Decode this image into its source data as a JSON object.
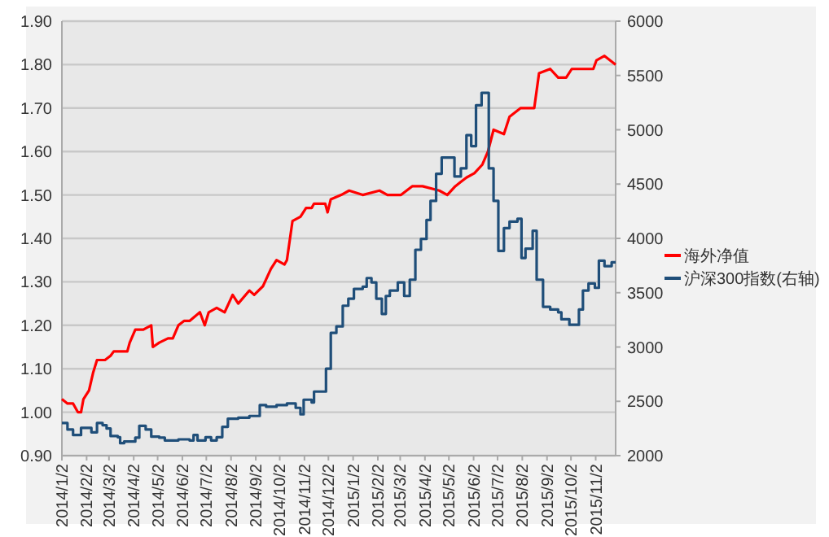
{
  "chart_data": {
    "type": "line",
    "xlim": [
      "2014-01-02",
      "2015-11-27"
    ],
    "xticks": [
      {
        "value": "2014-01-02",
        "label": "2014/1/2"
      },
      {
        "value": "2014-02-02",
        "label": "2014/2/2"
      },
      {
        "value": "2014-03-02",
        "label": "2014/3/2"
      },
      {
        "value": "2014-04-02",
        "label": "2014/4/2"
      },
      {
        "value": "2014-05-02",
        "label": "2014/5/2"
      },
      {
        "value": "2014-06-02",
        "label": "2014/6/2"
      },
      {
        "value": "2014-07-02",
        "label": "2014/7/2"
      },
      {
        "value": "2014-08-02",
        "label": "2014/8/2"
      },
      {
        "value": "2014-09-02",
        "label": "2014/9/2"
      },
      {
        "value": "2014-10-02",
        "label": "2014/10/2"
      },
      {
        "value": "2014-11-02",
        "label": "2014/11/2"
      },
      {
        "value": "2014-12-02",
        "label": "2014/12/2"
      },
      {
        "value": "2015-01-02",
        "label": "2015/1/2"
      },
      {
        "value": "2015-02-02",
        "label": "2015/2/2"
      },
      {
        "value": "2015-03-02",
        "label": "2015/3/2"
      },
      {
        "value": "2015-04-02",
        "label": "2015/4/2"
      },
      {
        "value": "2015-05-02",
        "label": "2015/5/2"
      },
      {
        "value": "2015-06-02",
        "label": "2015/6/2"
      },
      {
        "value": "2015-07-02",
        "label": "2015/7/2"
      },
      {
        "value": "2015-08-02",
        "label": "2015/8/2"
      },
      {
        "value": "2015-09-02",
        "label": "2015/9/2"
      },
      {
        "value": "2015-10-02",
        "label": "2015/10/2"
      },
      {
        "value": "2015-11-02",
        "label": "2015/11/2"
      }
    ],
    "ylim": [
      0.9,
      1.9
    ],
    "yticks": [
      {
        "value": 0.9,
        "label": "0.90"
      },
      {
        "value": 1.0,
        "label": "1.00"
      },
      {
        "value": 1.1,
        "label": "1.10"
      },
      {
        "value": 1.2,
        "label": "1.20"
      },
      {
        "value": 1.3,
        "label": "1.30"
      },
      {
        "value": 1.4,
        "label": "1.40"
      },
      {
        "value": 1.5,
        "label": "1.50"
      },
      {
        "value": 1.6,
        "label": "1.60"
      },
      {
        "value": 1.7,
        "label": "1.70"
      },
      {
        "value": 1.8,
        "label": "1.80"
      },
      {
        "value": 1.9,
        "label": "1.90"
      }
    ],
    "y2lim": [
      2000,
      6000
    ],
    "y2ticks": [
      2000,
      2500,
      3000,
      3500,
      4000,
      4500,
      5000,
      5500,
      6000
    ],
    "grid": "y",
    "legend": "right",
    "series": [
      {
        "name": "海外净值",
        "color": "#ff0000",
        "x": [
          "2014-01-02",
          "2014-01-09",
          "2014-01-16",
          "2014-01-22",
          "2014-01-26",
          "2014-01-29",
          "2014-02-05",
          "2014-02-10",
          "2014-02-15",
          "2014-02-25",
          "2014-03-04",
          "2014-03-08",
          "2014-03-25",
          "2014-03-28",
          "2014-04-04",
          "2014-04-14",
          "2014-04-24",
          "2014-04-26",
          "2014-05-04",
          "2014-05-15",
          "2014-05-21",
          "2014-05-28",
          "2014-06-04",
          "2014-06-11",
          "2014-06-24",
          "2014-06-30",
          "2014-07-05",
          "2014-07-15",
          "2014-07-25",
          "2014-08-04",
          "2014-08-11",
          "2014-08-25",
          "2014-08-31",
          "2014-09-11",
          "2014-09-21",
          "2014-09-28",
          "2014-10-08",
          "2014-10-11",
          "2014-10-18",
          "2014-10-28",
          "2014-11-04",
          "2014-11-11",
          "2014-11-14",
          "2014-11-28",
          "2014-12-01",
          "2014-12-05",
          "2014-12-18",
          "2014-12-28",
          "2015-01-14",
          "2015-02-04",
          "2015-02-14",
          "2015-03-03",
          "2015-03-17",
          "2015-03-30",
          "2015-04-20",
          "2015-04-30",
          "2015-05-10",
          "2015-05-17",
          "2015-05-24",
          "2015-06-03",
          "2015-06-13",
          "2015-06-20",
          "2015-06-27",
          "2015-07-10",
          "2015-07-17",
          "2015-07-31",
          "2015-08-17",
          "2015-08-23",
          "2015-09-06",
          "2015-09-16",
          "2015-09-26",
          "2015-10-03",
          "2015-10-30",
          "2015-11-03",
          "2015-11-13",
          "2015-11-27"
        ],
        "values": [
          1.03,
          1.02,
          1.02,
          1.0,
          1.0,
          1.03,
          1.05,
          1.09,
          1.12,
          1.12,
          1.13,
          1.14,
          1.14,
          1.16,
          1.19,
          1.19,
          1.2,
          1.15,
          1.16,
          1.17,
          1.17,
          1.2,
          1.21,
          1.21,
          1.23,
          1.2,
          1.23,
          1.24,
          1.23,
          1.27,
          1.25,
          1.28,
          1.27,
          1.29,
          1.33,
          1.35,
          1.34,
          1.35,
          1.44,
          1.45,
          1.47,
          1.47,
          1.48,
          1.48,
          1.46,
          1.49,
          1.5,
          1.51,
          1.5,
          1.51,
          1.5,
          1.5,
          1.52,
          1.52,
          1.51,
          1.5,
          1.52,
          1.53,
          1.54,
          1.55,
          1.57,
          1.6,
          1.65,
          1.64,
          1.68,
          1.7,
          1.7,
          1.78,
          1.79,
          1.77,
          1.77,
          1.79,
          1.79,
          1.81,
          1.82,
          1.8
        ]
      },
      {
        "name": "沪深300指数(右轴)",
        "type": "step",
        "axis": "y2",
        "color": "#1f4e79",
        "x": [
          "2014-01-02",
          "2014-01-09",
          "2014-01-16",
          "2014-01-22",
          "2014-01-26",
          "2014-02-05",
          "2014-02-08",
          "2014-02-15",
          "2014-02-22",
          "2014-02-27",
          "2014-03-04",
          "2014-03-13",
          "2014-03-16",
          "2014-03-21",
          "2014-04-04",
          "2014-04-09",
          "2014-04-17",
          "2014-04-24",
          "2014-05-04",
          "2014-05-11",
          "2014-05-28",
          "2014-06-11",
          "2014-06-16",
          "2014-06-21",
          "2014-07-01",
          "2014-07-08",
          "2014-07-15",
          "2014-07-22",
          "2014-07-29",
          "2014-08-11",
          "2014-08-25",
          "2014-09-07",
          "2014-09-15",
          "2014-09-28",
          "2014-10-11",
          "2014-10-22",
          "2014-10-28",
          "2014-11-01",
          "2014-11-11",
          "2014-11-14",
          "2014-11-28",
          "2014-11-29",
          "2014-12-05",
          "2014-12-12",
          "2014-12-20",
          "2014-12-27",
          "2015-01-03",
          "2015-01-14",
          "2015-01-19",
          "2015-01-25",
          "2015-01-31",
          "2015-02-07",
          "2015-02-12",
          "2015-02-17",
          "2015-02-27",
          "2015-03-07",
          "2015-03-14",
          "2015-03-21",
          "2015-03-28",
          "2015-04-04",
          "2015-04-09",
          "2015-04-16",
          "2015-04-23",
          "2015-05-03",
          "2015-05-09",
          "2015-05-17",
          "2015-05-24",
          "2015-05-30",
          "2015-06-05",
          "2015-06-12",
          "2015-06-18",
          "2015-06-21",
          "2015-06-27",
          "2015-07-03",
          "2015-07-10",
          "2015-07-17",
          "2015-07-27",
          "2015-08-01",
          "2015-08-06",
          "2015-08-15",
          "2015-08-20",
          "2015-08-28",
          "2015-09-06",
          "2015-09-16",
          "2015-09-20",
          "2015-09-30",
          "2015-10-07",
          "2015-10-12",
          "2015-10-17",
          "2015-10-24",
          "2015-11-01",
          "2015-11-06",
          "2015-11-13",
          "2015-11-22",
          "2015-11-27"
        ],
        "values": [
          2300,
          2240,
          2190,
          2190,
          2255,
          2255,
          2215,
          2300,
          2280,
          2250,
          2180,
          2170,
          2115,
          2130,
          2165,
          2275,
          2240,
          2175,
          2165,
          2140,
          2150,
          2140,
          2190,
          2140,
          2170,
          2140,
          2170,
          2265,
          2340,
          2350,
          2365,
          2465,
          2450,
          2465,
          2480,
          2440,
          2380,
          2515,
          2490,
          2590,
          2590,
          2800,
          3130,
          3190,
          3380,
          3445,
          3535,
          3555,
          3635,
          3595,
          3445,
          3305,
          3470,
          3520,
          3595,
          3470,
          3620,
          3895,
          3995,
          4170,
          4345,
          4595,
          4745,
          4745,
          4570,
          4645,
          4950,
          4850,
          5225,
          5340,
          5340,
          4645,
          4345,
          3885,
          4095,
          4155,
          4180,
          3820,
          3905,
          4070,
          3620,
          3370,
          3345,
          3320,
          3255,
          3205,
          3205,
          3345,
          3520,
          3585,
          3545,
          3795,
          3745,
          3780,
          3780
        ]
      }
    ]
  }
}
